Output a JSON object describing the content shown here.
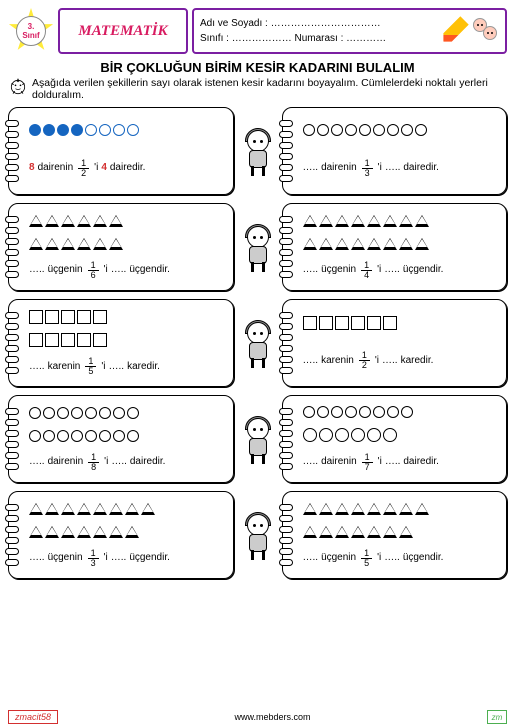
{
  "header": {
    "grade_num": "3.",
    "grade_label": "Sınıf",
    "subject": "MATEMATİK",
    "name_label": "Adı ve Soyadı :",
    "name_dots": "……………………………",
    "class_label": "Sınıfı :",
    "class_dots": "………………",
    "number_label": "Numarası :",
    "number_dots": "…………"
  },
  "title": "BİR ÇOKLUĞUN BİRİM KESİR KADARINI BULALIM",
  "instructions": "Aşağıda verilen şekillerin sayı olarak istenen kesir kadarını boyayalım. Cümlelerdeki noktalı yerleri dolduralım.",
  "cards": [
    {
      "shapes": {
        "type": "circle",
        "count": 8,
        "filled": 4,
        "color": "#1565c0"
      },
      "sentence": {
        "prefix": "8",
        "prefix_red": true,
        "obj": "dairenin",
        "num": "1",
        "den": "2",
        "sep": "'i",
        "result": "4",
        "result_red": true,
        "suffix": "dairedir."
      }
    },
    {
      "shapes": {
        "type": "circle",
        "count": 9,
        "filled": 0,
        "color": "#000"
      },
      "sentence": {
        "prefix": "…..",
        "obj": "dairenin",
        "num": "1",
        "den": "3",
        "sep": "'i",
        "result": "…..",
        "suffix": "dairedir."
      }
    },
    {
      "shapes": {
        "type": "triangle",
        "count": 12,
        "rows": [
          6,
          6
        ]
      },
      "sentence": {
        "prefix": "…..",
        "obj": "üçgenin",
        "num": "1",
        "den": "6",
        "sep": "'i",
        "result": "…..",
        "suffix": "üçgendir."
      }
    },
    {
      "shapes": {
        "type": "triangle",
        "count": 16,
        "rows": [
          8,
          8
        ]
      },
      "sentence": {
        "prefix": "…..",
        "obj": "üçgenin",
        "num": "1",
        "den": "4",
        "sep": "'i",
        "result": "…..",
        "suffix": "üçgendir."
      }
    },
    {
      "shapes": {
        "type": "square",
        "count": 10,
        "rows": [
          5,
          5
        ]
      },
      "sentence": {
        "prefix": "…..",
        "obj": "karenin",
        "num": "1",
        "den": "5",
        "sep": "'i",
        "result": "…..",
        "suffix": "karedir."
      }
    },
    {
      "shapes": {
        "type": "square",
        "count": 6,
        "rows": [
          6
        ]
      },
      "sentence": {
        "prefix": "…..",
        "obj": "karenin",
        "num": "1",
        "den": "2",
        "sep": "'i",
        "result": "…..",
        "suffix": "karedir."
      }
    },
    {
      "shapes": {
        "type": "circle",
        "count": 16,
        "rows": [
          8,
          8
        ],
        "color": "#000"
      },
      "sentence": {
        "prefix": "…..",
        "obj": "dairenin",
        "num": "1",
        "den": "8",
        "sep": "'i",
        "result": "…..",
        "suffix": "dairedir."
      }
    },
    {
      "shapes": {
        "type": "circle",
        "count": 14,
        "rows": [
          8,
          6
        ],
        "color": "#000"
      },
      "sentence": {
        "prefix": "…..",
        "obj": "dairenin",
        "num": "1",
        "den": "7",
        "sep": "'i",
        "result": "…..",
        "suffix": "dairedir."
      }
    },
    {
      "shapes": {
        "type": "triangle",
        "count": 15,
        "rows": [
          8,
          7
        ]
      },
      "sentence": {
        "prefix": "…..",
        "obj": "üçgenin",
        "num": "1",
        "den": "3",
        "sep": "'i",
        "result": "…..",
        "suffix": "üçgendir."
      }
    },
    {
      "shapes": {
        "type": "triangle",
        "count": 15,
        "rows": [
          8,
          7
        ]
      },
      "sentence": {
        "prefix": "…..",
        "obj": "üçgenin",
        "num": "1",
        "den": "5",
        "sep": "'i",
        "result": "…..",
        "suffix": "üçgendir."
      }
    }
  ],
  "footer": {
    "left": "zmacit58",
    "center": "www.mebders.com",
    "right": "zm"
  },
  "colors": {
    "purple": "#7b1fa2",
    "pink": "#d81b60",
    "red": "#d32f2f",
    "blue": "#1565c0"
  }
}
